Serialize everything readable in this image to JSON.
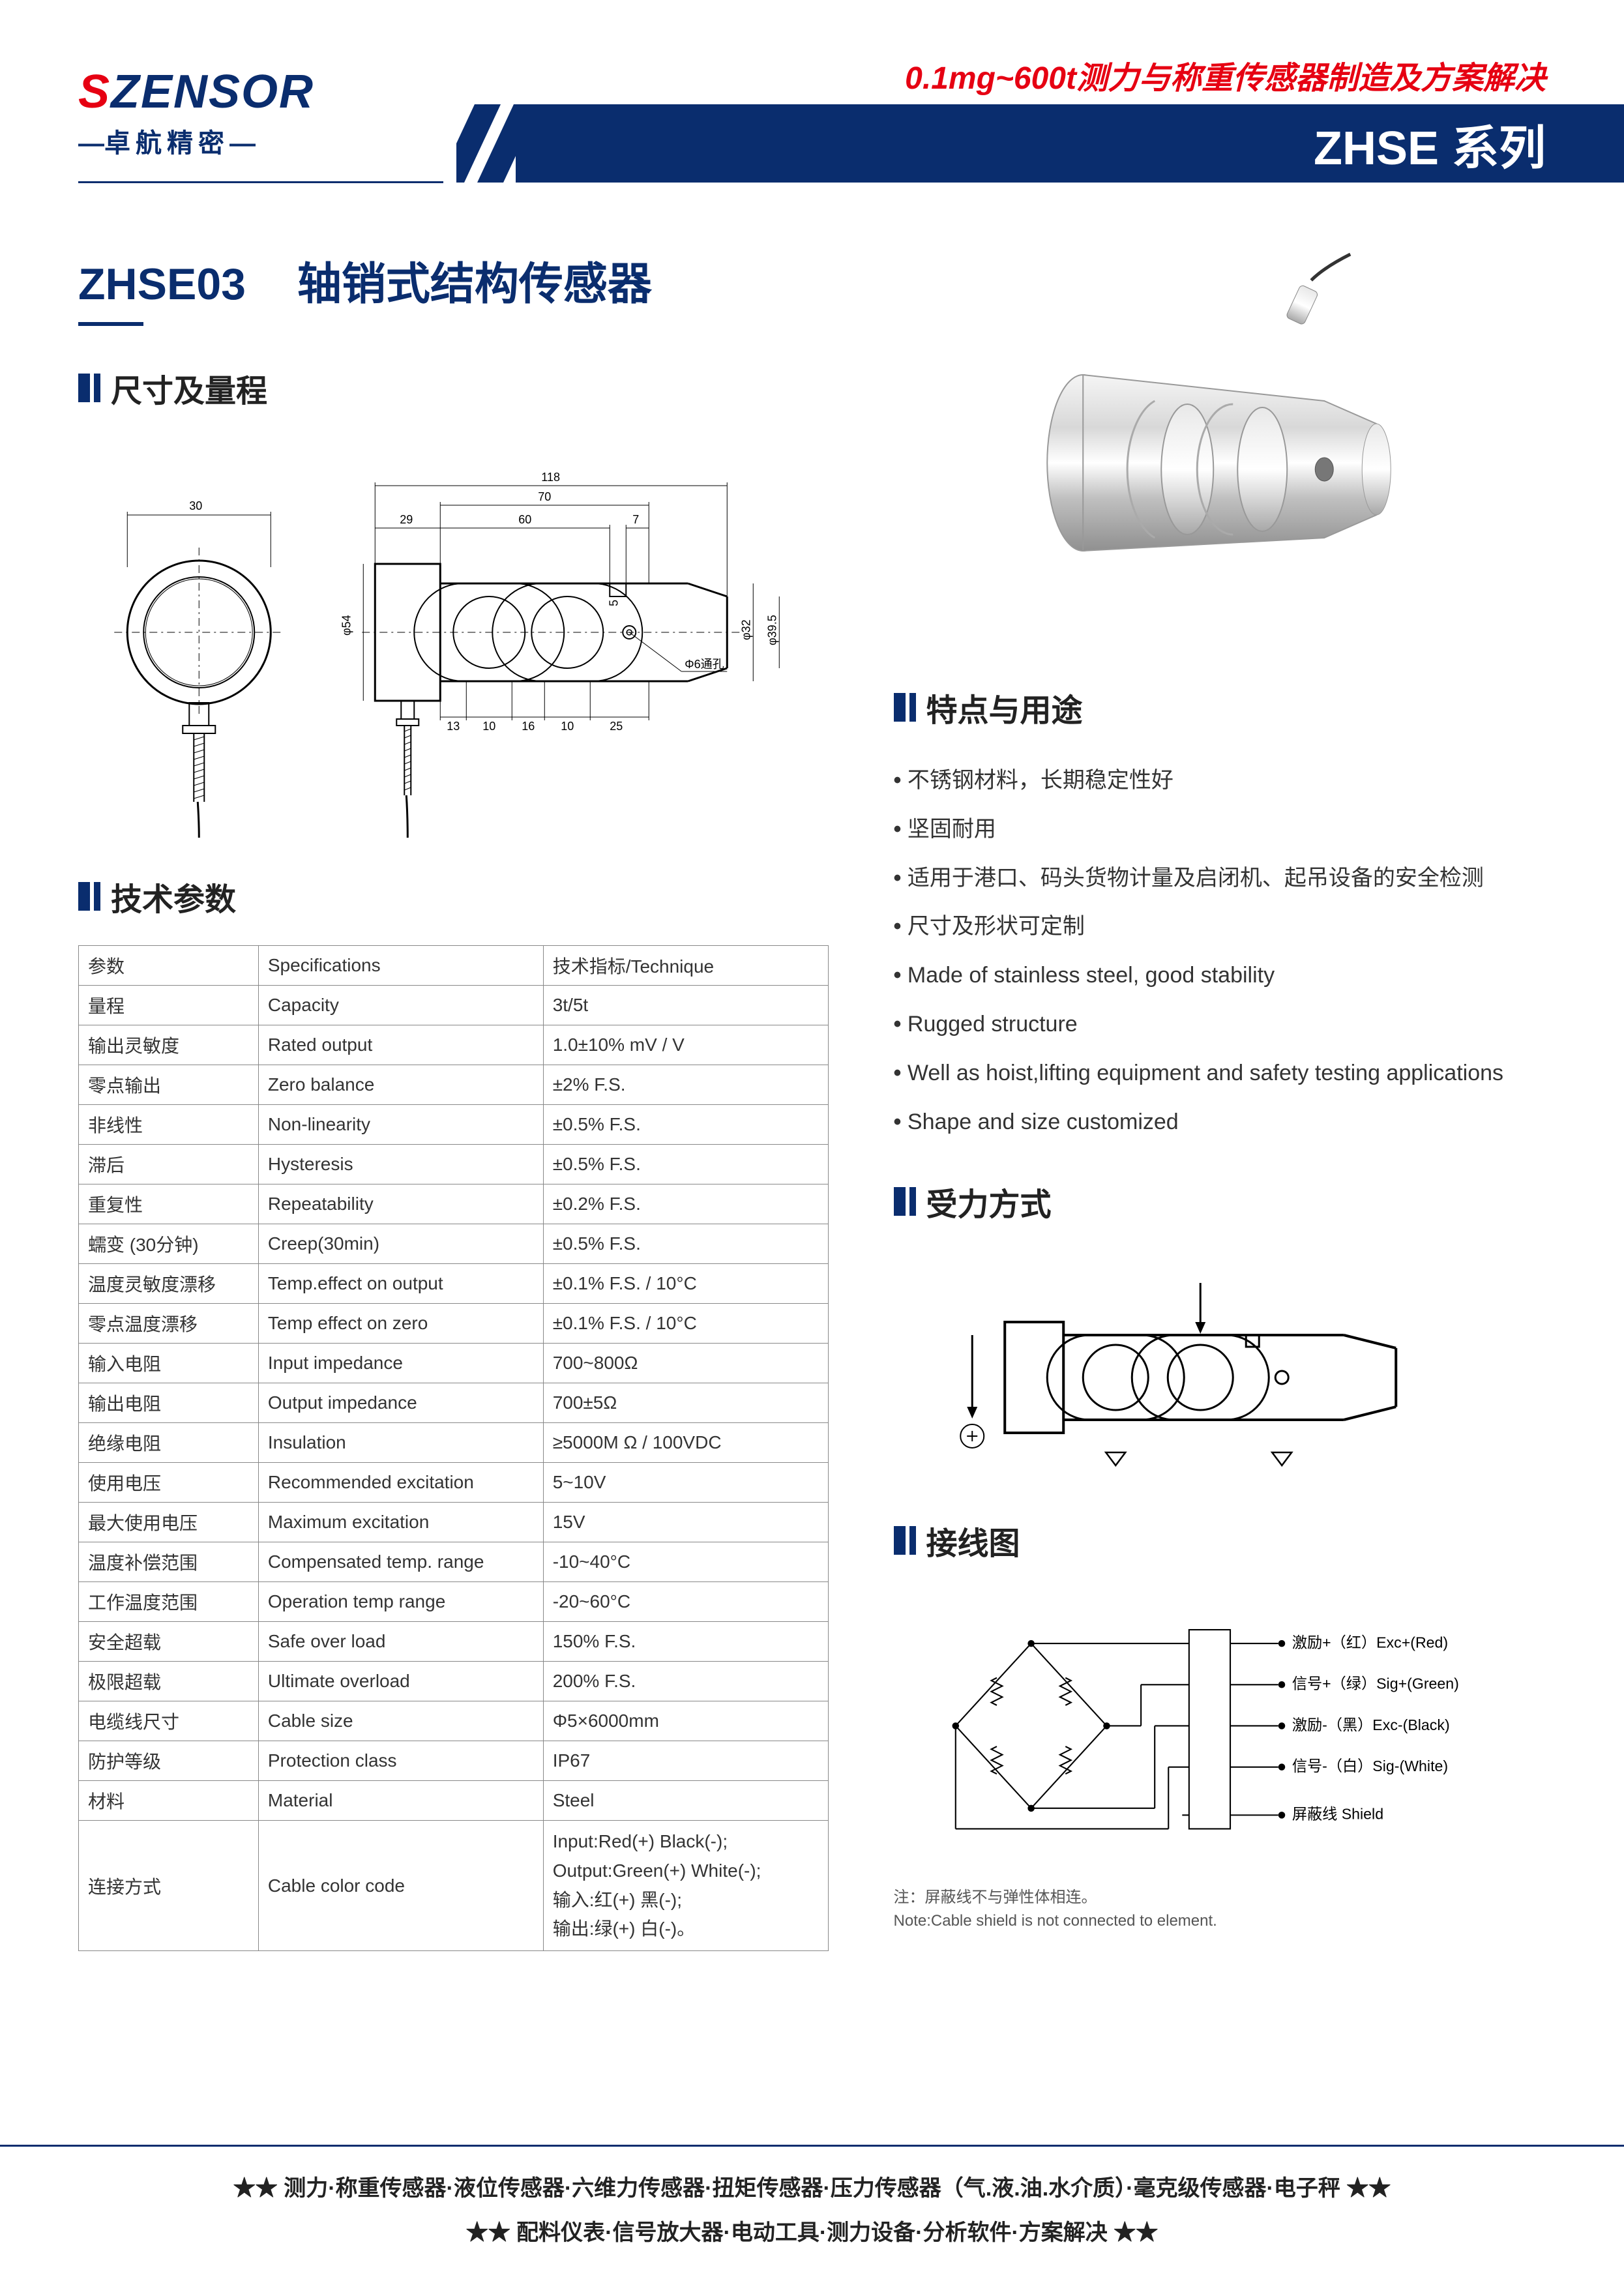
{
  "header": {
    "logo_s": "S",
    "logo_rest": "ZENSOR",
    "logo_sub": "卓航精密",
    "tagline": "0.1mg~600t测力与称重传感器制造及方案解决",
    "series": "ZHSE 系列"
  },
  "product": {
    "code": "ZHSE03",
    "name": "轴销式结构传感器"
  },
  "sections": {
    "dimensions": "尺寸及量程",
    "specs": "技术参数",
    "features": "特点与用途",
    "force": "受力方式",
    "wiring": "接线图"
  },
  "dimensions": {
    "d1": "30",
    "d2": "118",
    "d3": "70",
    "d4": "29",
    "d5": "60",
    "d6": "7",
    "d7": "φ54",
    "d8": "5",
    "d9": "φ32",
    "d10": "φ39.5",
    "d11": "Φ6通孔",
    "d12": "13",
    "d13": "10",
    "d14": "16",
    "d15": "10",
    "d16": "25"
  },
  "spec_table": {
    "headers": [
      "参数",
      "Specifications",
      "技术指标/Technique"
    ],
    "rows": [
      [
        "量程",
        "Capacity",
        "3t/5t"
      ],
      [
        "输出灵敏度",
        "Rated output",
        "1.0±10%  mV / V"
      ],
      [
        "零点输出",
        "Zero balance",
        "±2% F.S."
      ],
      [
        "非线性",
        "Non-linearity",
        "±0.5% F.S."
      ],
      [
        "滞后",
        "Hysteresis",
        "±0.5% F.S."
      ],
      [
        "重复性",
        "Repeatability",
        "±0.2% F.S."
      ],
      [
        "蠕变 (30分钟)",
        "Creep(30min)",
        "±0.5% F.S."
      ],
      [
        "温度灵敏度漂移",
        "Temp.effect on output",
        "±0.1% F.S. / 10°C"
      ],
      [
        "零点温度漂移",
        "Temp effect on zero",
        "±0.1% F.S. / 10°C"
      ],
      [
        "输入电阻",
        "Input impedance",
        "700~800Ω"
      ],
      [
        "输出电阻",
        "Output impedance",
        "700±5Ω"
      ],
      [
        "绝缘电阻",
        "Insulation",
        "≥5000M Ω / 100VDC"
      ],
      [
        "使用电压",
        "Recommended excitation",
        "5~10V"
      ],
      [
        "最大使用电压",
        "Maximum excitation",
        "15V"
      ],
      [
        "温度补偿范围",
        "Compensated temp. range",
        "-10~40°C"
      ],
      [
        "工作温度范围",
        "Operation temp range",
        "-20~60°C"
      ],
      [
        "安全超载",
        "Safe over load",
        "150% F.S."
      ],
      [
        "极限超载",
        "Ultimate overload",
        "200% F.S."
      ],
      [
        "电缆线尺寸",
        "Cable size",
        "Φ5×6000mm"
      ],
      [
        "防护等级",
        "Protection class",
        "IP67"
      ],
      [
        "材料",
        "Material",
        "Steel"
      ]
    ],
    "last_row": {
      "c1": "连接方式",
      "c2": "Cable color code",
      "c3": "Input:Red(+)          Black(-);\nOutput:Green(+)     White(-);\n输入:红(+)              黑(-);\n输出:绿(+)              白(-)。"
    }
  },
  "features": [
    "不锈钢材料，长期稳定性好",
    "坚固耐用",
    "适用于港口、码头货物计量及启闭机、起吊设备的安全检测",
    "尺寸及形状可定制",
    "Made of stainless steel, good stability",
    "Rugged structure",
    "Well as hoist,lifting equipment and safety testing applications",
    "Shape and size customized"
  ],
  "wiring": {
    "exc_p": "激励+（红）Exc+(Red)",
    "sig_p": "信号+（绿）Sig+(Green)",
    "exc_n": "激励-（黑）Exc-(Black)",
    "sig_n": "信号-（白）Sig-(White)",
    "shield": "屏蔽线  Shield",
    "note_cn": "注：屏蔽线不与弹性体相连。",
    "note_en": "Note:Cable shield is not connected to element."
  },
  "footer": {
    "line1": "★★  测力·称重传感器·液位传感器·六维力传感器·扭矩传感器·压力传感器（气.液.油.水介质）·毫克级传感器·电子秤  ★★",
    "line2": "★★  配料仪表·信号放大器·电动工具·测力设备·分析软件·方案解决  ★★"
  },
  "colors": {
    "brand_blue": "#0a2d6e",
    "brand_red": "#e60012",
    "text": "#333333",
    "border": "#888888"
  }
}
